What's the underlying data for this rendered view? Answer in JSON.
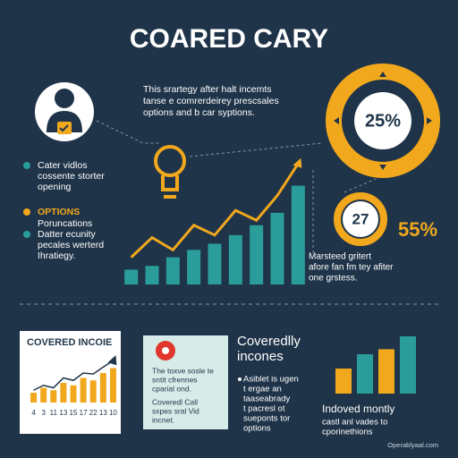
{
  "title": "COARED CARY",
  "intro": [
    "This srartegy after halt incemts",
    "tanse e comrerdeirey prescsales",
    "options and b car syptions."
  ],
  "left_list": {
    "item1": [
      "Cater vidlos",
      "cossente storter",
      "opening"
    ],
    "options_heading": "OPTIONS",
    "item2": [
      "Poruncations"
    ],
    "item3": [
      "Datter ecunity",
      "pecales werterd",
      "Ihratiegy."
    ]
  },
  "badges": {
    "top": "25%",
    "middle": "27",
    "big": "55%"
  },
  "description": [
    "Marsteed gritert",
    "afore fan fm tey afiter",
    "one grstess."
  ],
  "main_chart": {
    "bars": [
      12,
      15,
      22,
      28,
      33,
      40,
      48,
      58,
      80
    ],
    "trend": [
      22,
      38,
      28,
      48,
      40,
      60,
      52,
      72,
      98
    ],
    "ylim": [
      0,
      100
    ],
    "bar_color": "#2a9d9a",
    "line_color": "#f2a81d"
  },
  "card_income": {
    "title": "COVERED INCOIE",
    "x_labels": [
      "4",
      "3",
      "11",
      "13",
      "15",
      "17",
      "22",
      "13",
      "10"
    ],
    "bars": [
      20,
      30,
      25,
      40,
      35,
      50,
      45,
      60,
      70
    ],
    "trend": [
      25,
      35,
      30,
      50,
      45,
      60,
      58,
      72,
      85
    ],
    "ylim": [
      0,
      100
    ]
  },
  "card_call": {
    "text1": [
      "The toxve sosle te",
      "sntit cfrennes",
      "cparial ond."
    ],
    "text2": [
      "Coveredl Call",
      "sxpes sral Vid",
      "incnet."
    ]
  },
  "covered_heading": [
    "Coveredlly",
    "incones"
  ],
  "covered_text": [
    "Asiblet is ugen",
    "t ergae an",
    "taaseabrady",
    "t pacresl ot",
    "sueponts tor",
    "options"
  ],
  "monthly": {
    "bars": [
      35,
      55,
      62,
      80
    ],
    "colors": [
      "#f2a81d",
      "#2a9d9a",
      "#f2a81d",
      "#2a9d9a"
    ],
    "ylim": [
      0,
      100
    ],
    "heading": "Indoved montly",
    "text": [
      "castl anl vades to",
      "cporinethions"
    ]
  },
  "footer": "Operablyaal.com"
}
